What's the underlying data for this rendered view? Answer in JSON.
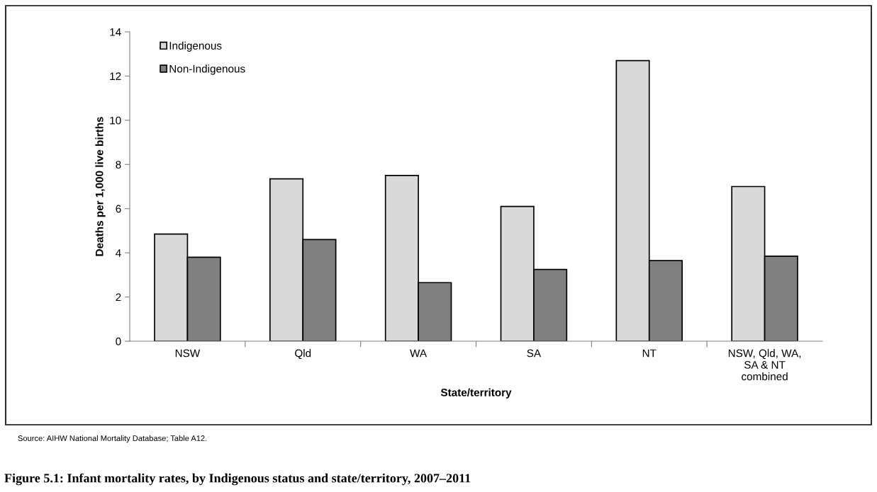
{
  "chart_data": {
    "type": "bar",
    "title": "Figure 5.1: Infant mortality rates, by Indigenous status and state/territory, 2007–2011",
    "xlabel": "State/territory",
    "ylabel": "Deaths per 1,000 live births",
    "categories": [
      "NSW",
      "Qld",
      "WA",
      "SA",
      "NT",
      "NSW, Qld, WA,\nSA & NT\ncombined"
    ],
    "series": [
      {
        "name": "Indigenous",
        "color": "#d9d9d9",
        "values": [
          4.85,
          7.35,
          7.5,
          6.1,
          12.7,
          7.0
        ]
      },
      {
        "name": "Non-Indigenous",
        "color": "#808080",
        "values": [
          3.8,
          4.6,
          2.65,
          3.25,
          3.65,
          3.85
        ]
      }
    ],
    "ylim": [
      0,
      14
    ],
    "yticks": [
      0,
      2,
      4,
      6,
      8,
      10,
      12,
      14
    ],
    "grid": false,
    "legend": "top left",
    "annotations": [
      "Source: AIHW National Mortality Database; Table A12."
    ]
  }
}
